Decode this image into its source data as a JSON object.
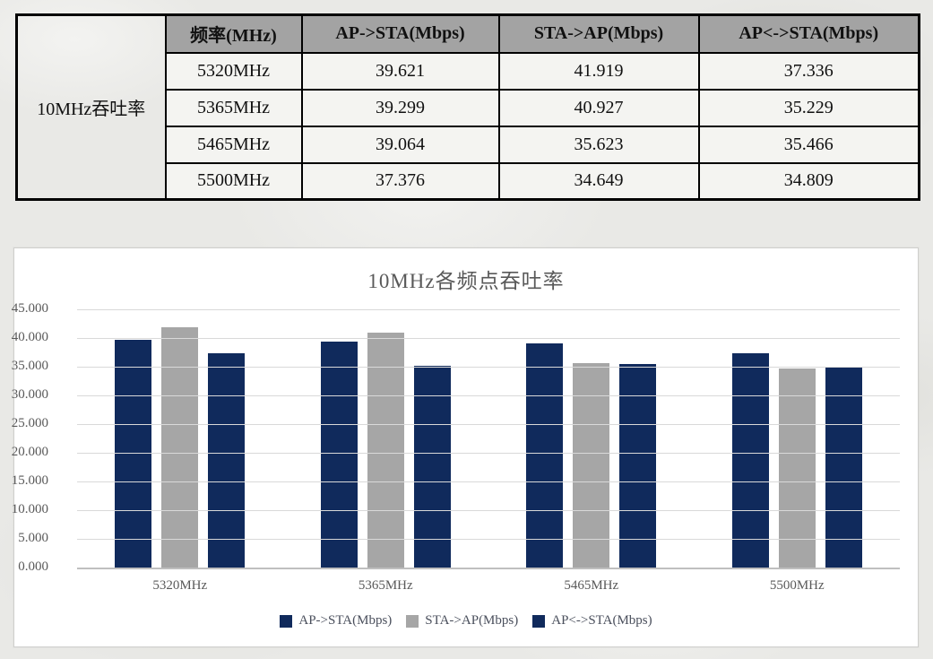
{
  "colors": {
    "navy": "#102a5c",
    "gray": "#a6a6a6",
    "table_header_bg": "#a3a3a3",
    "gridline": "#d9d9d9",
    "axis_line": "#bfbfbf",
    "title_text": "#595959"
  },
  "table": {
    "row_header": "10MHz吞吐率",
    "columns": [
      "频率(MHz)",
      "AP->STA(Mbps)",
      "STA->AP(Mbps)",
      "AP<->STA(Mbps)"
    ],
    "rows": [
      [
        "5320MHz",
        "39.621",
        "41.919",
        "37.336"
      ],
      [
        "5365MHz",
        "39.299",
        "40.927",
        "35.229"
      ],
      [
        "5465MHz",
        "39.064",
        "35.623",
        "35.466"
      ],
      [
        "5500MHz",
        "37.376",
        "34.649",
        "34.809"
      ]
    ]
  },
  "chart_data": {
    "type": "bar",
    "title": "10MHz各频点吞吐率",
    "categories": [
      "5320MHz",
      "5365MHz",
      "5465MHz",
      "5500MHz"
    ],
    "series": [
      {
        "name": "AP->STA(Mbps)",
        "color": "#102a5c",
        "values": [
          39.621,
          39.299,
          39.064,
          37.376
        ]
      },
      {
        "name": "STA->AP(Mbps)",
        "color": "#a6a6a6",
        "values": [
          41.919,
          40.927,
          35.623,
          34.649
        ]
      },
      {
        "name": "AP<->STA(Mbps)",
        "color": "#102a5c",
        "values": [
          37.336,
          35.229,
          35.466,
          34.809
        ]
      }
    ],
    "ylim": [
      0,
      45
    ],
    "ytick_step": 5,
    "ytick_labels": [
      "45.000",
      "40.000",
      "35.000",
      "30.000",
      "25.000",
      "20.000",
      "15.000",
      "10.000",
      "5.000",
      "0.000"
    ],
    "grid": true,
    "legend_position": "bottom"
  }
}
